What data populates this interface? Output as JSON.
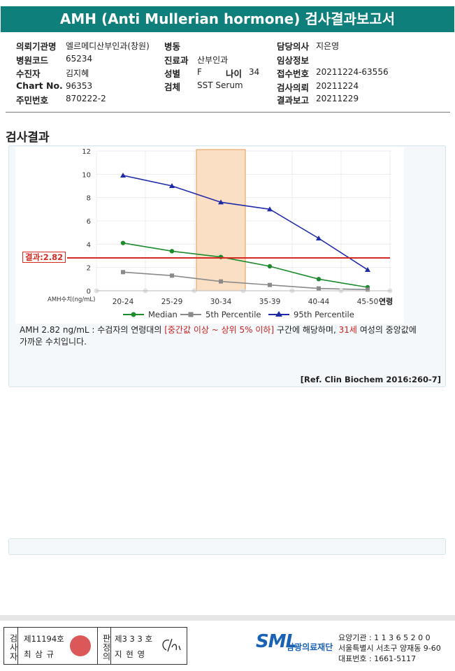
{
  "header": {
    "title": "AMH (Anti Mullerian hormone) 검사결과보고서"
  },
  "info": {
    "col1": [
      {
        "label": "의뢰기관명",
        "value": "엘르메디산부인과(창원)"
      },
      {
        "label": "병원코드",
        "value": "65234"
      },
      {
        "label": "수진자",
        "value": "김지혜"
      },
      {
        "label": "Chart No.",
        "value": "96353"
      },
      {
        "label": "주민번호",
        "value": "870222-2"
      }
    ],
    "col2": [
      {
        "label": "병동",
        "value": ""
      },
      {
        "label": "진료과",
        "value": "산부인과"
      },
      {
        "label": "성별",
        "value": "F"
      },
      {
        "label": "검체",
        "value": "SST Serum"
      }
    ],
    "age": {
      "label": "나이",
      "value": "34"
    },
    "col3": [
      {
        "label": "담당의사",
        "value": "지은영"
      },
      {
        "label": "임상정보",
        "value": ""
      },
      {
        "label": "접수번호",
        "value": "20211224-63556"
      },
      {
        "label": "검사의뢰",
        "value": "20211224"
      },
      {
        "label": "결과보고",
        "value": "20211229"
      }
    ]
  },
  "section_title": "검사결과",
  "result_label": "결과:2.82",
  "chart_data": {
    "type": "line",
    "categories": [
      "20-24",
      "25-29",
      "30-34",
      "35-39",
      "40-44",
      "45-50"
    ],
    "xlabel": "연령",
    "ylabel": "AMH수치(ng/mL)",
    "ylim": [
      0,
      12
    ],
    "yticks": [
      0,
      2,
      4,
      6,
      8,
      10,
      12
    ],
    "grid": true,
    "legend_position": "bottom",
    "highlight_category": "30-34",
    "result_value": 2.82,
    "series": [
      {
        "name": "Median",
        "color": "#1e8a2e",
        "marker": "circle",
        "values": [
          4.1,
          3.4,
          2.9,
          2.1,
          1.0,
          0.3
        ]
      },
      {
        "name": "5th Percentile",
        "color": "#8a8a8a",
        "marker": "square",
        "values": [
          1.6,
          1.3,
          0.8,
          0.5,
          0.2,
          0.1
        ]
      },
      {
        "name": "95th Percentile",
        "color": "#1f2aa8",
        "marker": "triangle",
        "values": [
          9.9,
          9.0,
          7.6,
          7.0,
          4.5,
          1.8
        ]
      }
    ]
  },
  "description": {
    "p1": "AMH  2.82 ng/mL : 수검자의 연령대의 ",
    "p2": "[중간값 이상 ~ 상위 5% 이하]",
    "p3": " 구간에 해당하며, ",
    "p4": "31세",
    "p5": " 여성의 중앙값에",
    "p6": "가까운 수치입니다."
  },
  "reference": "[Ref. Clin Biochem 2016:260-7]",
  "footer": {
    "v1": "검사자",
    "no1": "제11194호",
    "name1": "최 삼 규",
    "v2": "판정의",
    "no2": "제3 3 3 호",
    "name2": "지 현 영",
    "logo": "SML",
    "org": "삼광의료재단",
    "line1": "요양기관 : 1 1 3 6 5 2 0 0",
    "line2": "서울특별시 서초구 양재동 9-60",
    "line3": "대표번호 : 1661-5117"
  }
}
